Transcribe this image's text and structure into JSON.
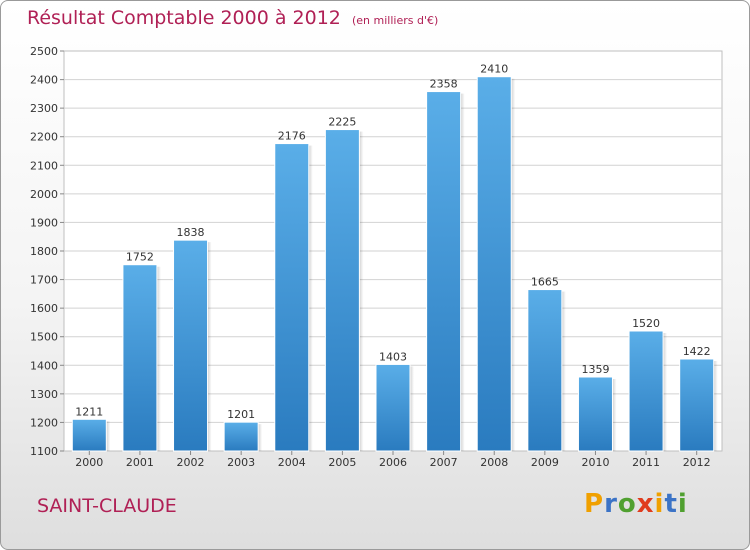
{
  "title": "Résultat Comptable 2000 à 2012",
  "unit_note": "(en milliers d'€)",
  "location": "SAINT-CLAUDE",
  "brand": {
    "letters": [
      "P",
      "r",
      "o",
      "x",
      "i",
      "t",
      "i"
    ],
    "colors": [
      "#f0a000",
      "#3b73c6",
      "#50a030",
      "#e03c1e",
      "#f0a000",
      "#3b73c6",
      "#50a030"
    ]
  },
  "colors": {
    "bar_top": "#5aaee8",
    "bar_bottom": "#2a7bbf",
    "title": "#b02055"
  },
  "chart_data": {
    "type": "bar",
    "title": "Résultat Comptable 2000 à 2012",
    "subtitle": "(en milliers d'€)",
    "xlabel": "",
    "ylabel": "",
    "categories": [
      "2000",
      "2001",
      "2002",
      "2003",
      "2004",
      "2005",
      "2006",
      "2007",
      "2008",
      "2009",
      "2010",
      "2011",
      "2012"
    ],
    "values": [
      1211,
      1752,
      1838,
      1201,
      2176,
      2225,
      1403,
      2358,
      2410,
      1665,
      1359,
      1520,
      1422
    ],
    "ylim": [
      1100,
      2500
    ],
    "yticks": [
      1100,
      1200,
      1300,
      1400,
      1500,
      1600,
      1700,
      1800,
      1900,
      2000,
      2100,
      2200,
      2300,
      2400,
      2500
    ],
    "grid": true,
    "data_labels": true
  }
}
